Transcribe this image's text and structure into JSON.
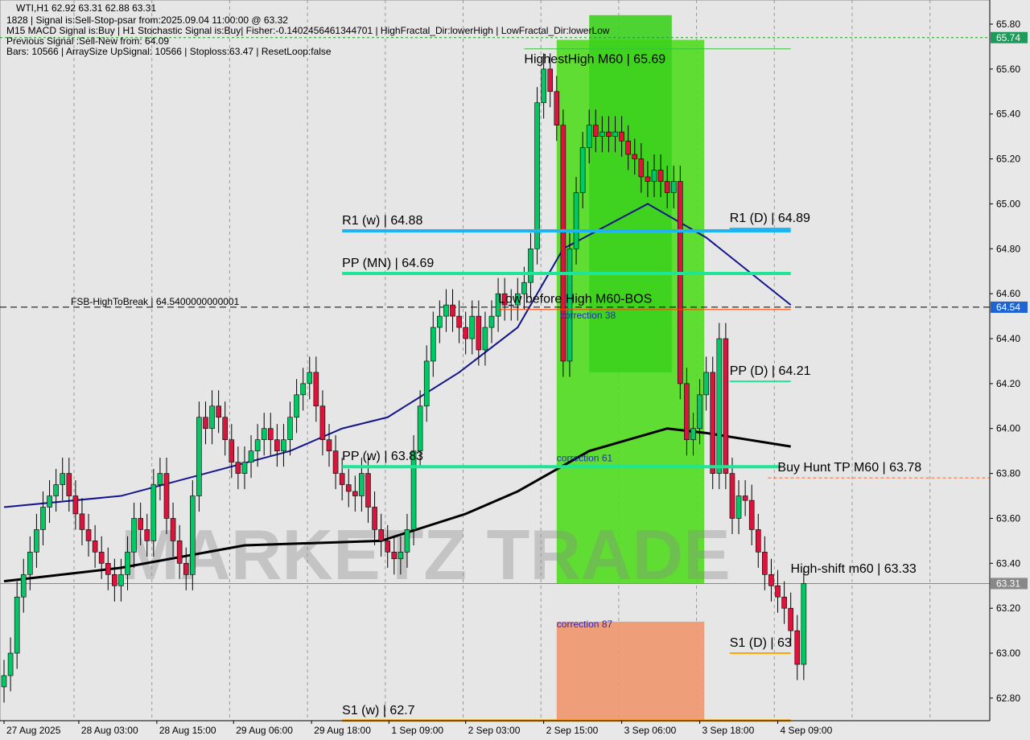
{
  "header": {
    "title": "WTI,H1  62.92 63.31 62.88 63.31",
    "line1": "1828 | Signal is:Sell-Stop-psar from:2025.09.04 11:00:00 @ 63.32",
    "line2": "M15 MACD Signal is:Buy | H1 Stochastic Signal is:Buy| Fisher:-0.1402456461344701 | HighFractal_Dir:lowerHigh | LowFractal_Dir:lowerLow",
    "line3": "Previous Signal :Sell-New from: 64.09",
    "line4": "Bars: 10566 | ArraySize UpSignal: 10566 | Stoploss:63.47 | ResetLoop:false"
  },
  "watermark": "MARKETZ TRADE",
  "chart_data": {
    "type": "candlestick",
    "symbol": "WTI",
    "timeframe": "H1",
    "ylim": [
      62.7,
      65.84
    ],
    "yticks": [
      65.8,
      65.6,
      65.4,
      65.2,
      65.0,
      64.8,
      64.6,
      64.4,
      64.2,
      64.0,
      63.8,
      63.6,
      63.4,
      63.2,
      63.0,
      62.8
    ],
    "xticks": [
      {
        "bar": 0,
        "label": "27 Aug 2025"
      },
      {
        "bar": 11.5,
        "label": "28 Aug 03:00"
      },
      {
        "bar": 23.5,
        "label": "28 Aug 15:00"
      },
      {
        "bar": 35.3,
        "label": "29 Aug 06:00"
      },
      {
        "bar": 47.3,
        "label": "29 Aug 18:00"
      },
      {
        "bar": 59.2,
        "label": "1 Sep 09:00"
      },
      {
        "bar": 71,
        "label": "2 Sep 03:00"
      },
      {
        "bar": 83,
        "label": "2 Sep 15:00"
      },
      {
        "bar": 95,
        "label": "3 Sep 06:00"
      },
      {
        "bar": 107,
        "label": "3 Sep 18:00"
      },
      {
        "bar": 119,
        "label": "4 Sep 09:00"
      }
    ],
    "closes": [
      62.9,
      63.0,
      63.25,
      63.35,
      63.45,
      63.55,
      63.65,
      63.7,
      63.75,
      63.8,
      63.7,
      63.62,
      63.55,
      63.5,
      63.45,
      63.4,
      63.35,
      63.3,
      63.35,
      63.45,
      63.6,
      63.55,
      63.5,
      63.75,
      63.8,
      63.6,
      63.5,
      63.4,
      63.35,
      63.7,
      64.05,
      64.0,
      64.1,
      64.05,
      63.95,
      63.85,
      63.8,
      63.85,
      63.9,
      63.95,
      64.0,
      63.95,
      63.9,
      63.95,
      64.05,
      64.15,
      64.2,
      64.25,
      64.1,
      63.95,
      63.9,
      63.8,
      63.75,
      63.72,
      63.7,
      63.8,
      63.65,
      63.55,
      63.5,
      63.45,
      63.42,
      63.45,
      63.55,
      63.9,
      64.1,
      64.3,
      64.45,
      64.5,
      64.55,
      64.5,
      64.45,
      64.4,
      64.5,
      64.35,
      64.45,
      64.5,
      64.6,
      64.55,
      64.55,
      64.6,
      64.65,
      64.8,
      65.45,
      65.6,
      65.5,
      65.35,
      64.3,
      64.8,
      65.05,
      65.25,
      65.35,
      65.3,
      65.32,
      65.3,
      65.32,
      65.28,
      65.22,
      65.2,
      65.12,
      65.1,
      65.15,
      65.1,
      65.05,
      65.1,
      64.2,
      63.95,
      64.0,
      64.15,
      64.25,
      63.8,
      64.4,
      63.8,
      63.6,
      63.7,
      63.68,
      63.55,
      63.45,
      63.35,
      63.3,
      63.25,
      63.2,
      63.1,
      62.95,
      63.31
    ],
    "ma_fast": [
      [
        0,
        63.65
      ],
      [
        18,
        63.7
      ],
      [
        44,
        63.9
      ],
      [
        52,
        64.0
      ],
      [
        59,
        64.05
      ],
      [
        70,
        64.25
      ],
      [
        79,
        64.45
      ],
      [
        86,
        64.8
      ],
      [
        99,
        65.0
      ],
      [
        108,
        64.85
      ],
      [
        121,
        64.55
      ]
    ],
    "ma_slow": [
      [
        0,
        63.32
      ],
      [
        18,
        63.38
      ],
      [
        37,
        63.48
      ],
      [
        58,
        63.5
      ],
      [
        71,
        63.62
      ],
      [
        79,
        63.72
      ],
      [
        90,
        63.9
      ],
      [
        102,
        64.0
      ],
      [
        108,
        63.98
      ],
      [
        121,
        63.92
      ]
    ],
    "up_color": "#00c864",
    "down_color": "#dc143c",
    "levels": [
      {
        "label": "R1 (w) | 64.88",
        "price": 64.88,
        "color": "#1eb4f0",
        "from": 52,
        "to": 121,
        "width": 4
      },
      {
        "label": "PP (MN) | 64.69",
        "price": 64.69,
        "color": "#1ee696",
        "from": 52,
        "to": 121,
        "width": 4
      },
      {
        "label": "PP (w) | 63.83",
        "price": 63.83,
        "color": "#1ee696",
        "from": 52,
        "to": 119.5,
        "width": 4
      },
      {
        "label": "S1 (w) | 62.7",
        "price": 62.7,
        "color": "#ffa500",
        "from": 52,
        "to": 121,
        "width": 3
      },
      {
        "label": "R1 (D) | 64.89",
        "price": 64.89,
        "color": "#1eb4f0",
        "from": 111.6,
        "to": 121,
        "width": 2
      },
      {
        "label": "PP (D) | 64.21",
        "price": 64.21,
        "color": "#1ee696",
        "from": 111.6,
        "to": 121,
        "width": 2
      },
      {
        "label": "S1 (D) | 63",
        "price": 63.0,
        "color": "#ffa500",
        "from": 111.6,
        "to": 121,
        "width": 2
      },
      {
        "label": "HighestHigh   M60 | 65.69",
        "price": 65.69,
        "color": "#32c832",
        "from": 80,
        "to": 121,
        "width": 1
      },
      {
        "label": "High-shift m60 | 63.33",
        "price": 63.33,
        "color": "#ffa500",
        "from": 119.5,
        "to": 121,
        "width": 0
      },
      {
        "label": "Buy Hunt TP M60 | 63.78",
        "price": 63.78,
        "color": "#ff6420",
        "from": 117.5,
        "to": 152,
        "width": 1,
        "dash": true
      },
      {
        "label": "Low before High  M60-BOS",
        "price": 64.53,
        "color": "#ff4500",
        "from": 76,
        "to": 121,
        "width": 1
      }
    ],
    "fsb": {
      "label": "FSB-HighToBreak | 64.5400000000001",
      "price": 64.54
    },
    "top_dashed": 65.74,
    "zones": [
      {
        "name": "buy-zone",
        "from": 85,
        "to": 107.7,
        "top": 65.73,
        "bottom": 63.31,
        "color": "#50dc1e"
      },
      {
        "name": "buy-zone-top",
        "from": 90,
        "to": 102.7,
        "top": 65.84,
        "bottom": 64.25,
        "color": "#3cd21e"
      },
      {
        "name": "correction-zone",
        "from": 85,
        "to": 107.7,
        "top": 63.14,
        "bottom": 62.7,
        "color": "#f0966e"
      }
    ],
    "zone_labels": [
      {
        "text": "correction 61",
        "price": 63.84,
        "bar": 85
      },
      {
        "text": "correction 87",
        "price": 63.1,
        "bar": 85
      },
      {
        "text": "correction 38",
        "price": 64.54,
        "bar": 85.5
      }
    ],
    "price_tags": [
      {
        "price": 65.74,
        "text": "65.74",
        "color": "#1e9b5a"
      },
      {
        "price": 64.54,
        "text": "64.54",
        "color": "#1e64d2"
      },
      {
        "price": 63.31,
        "text": "63.31",
        "color": "#888888"
      }
    ]
  }
}
